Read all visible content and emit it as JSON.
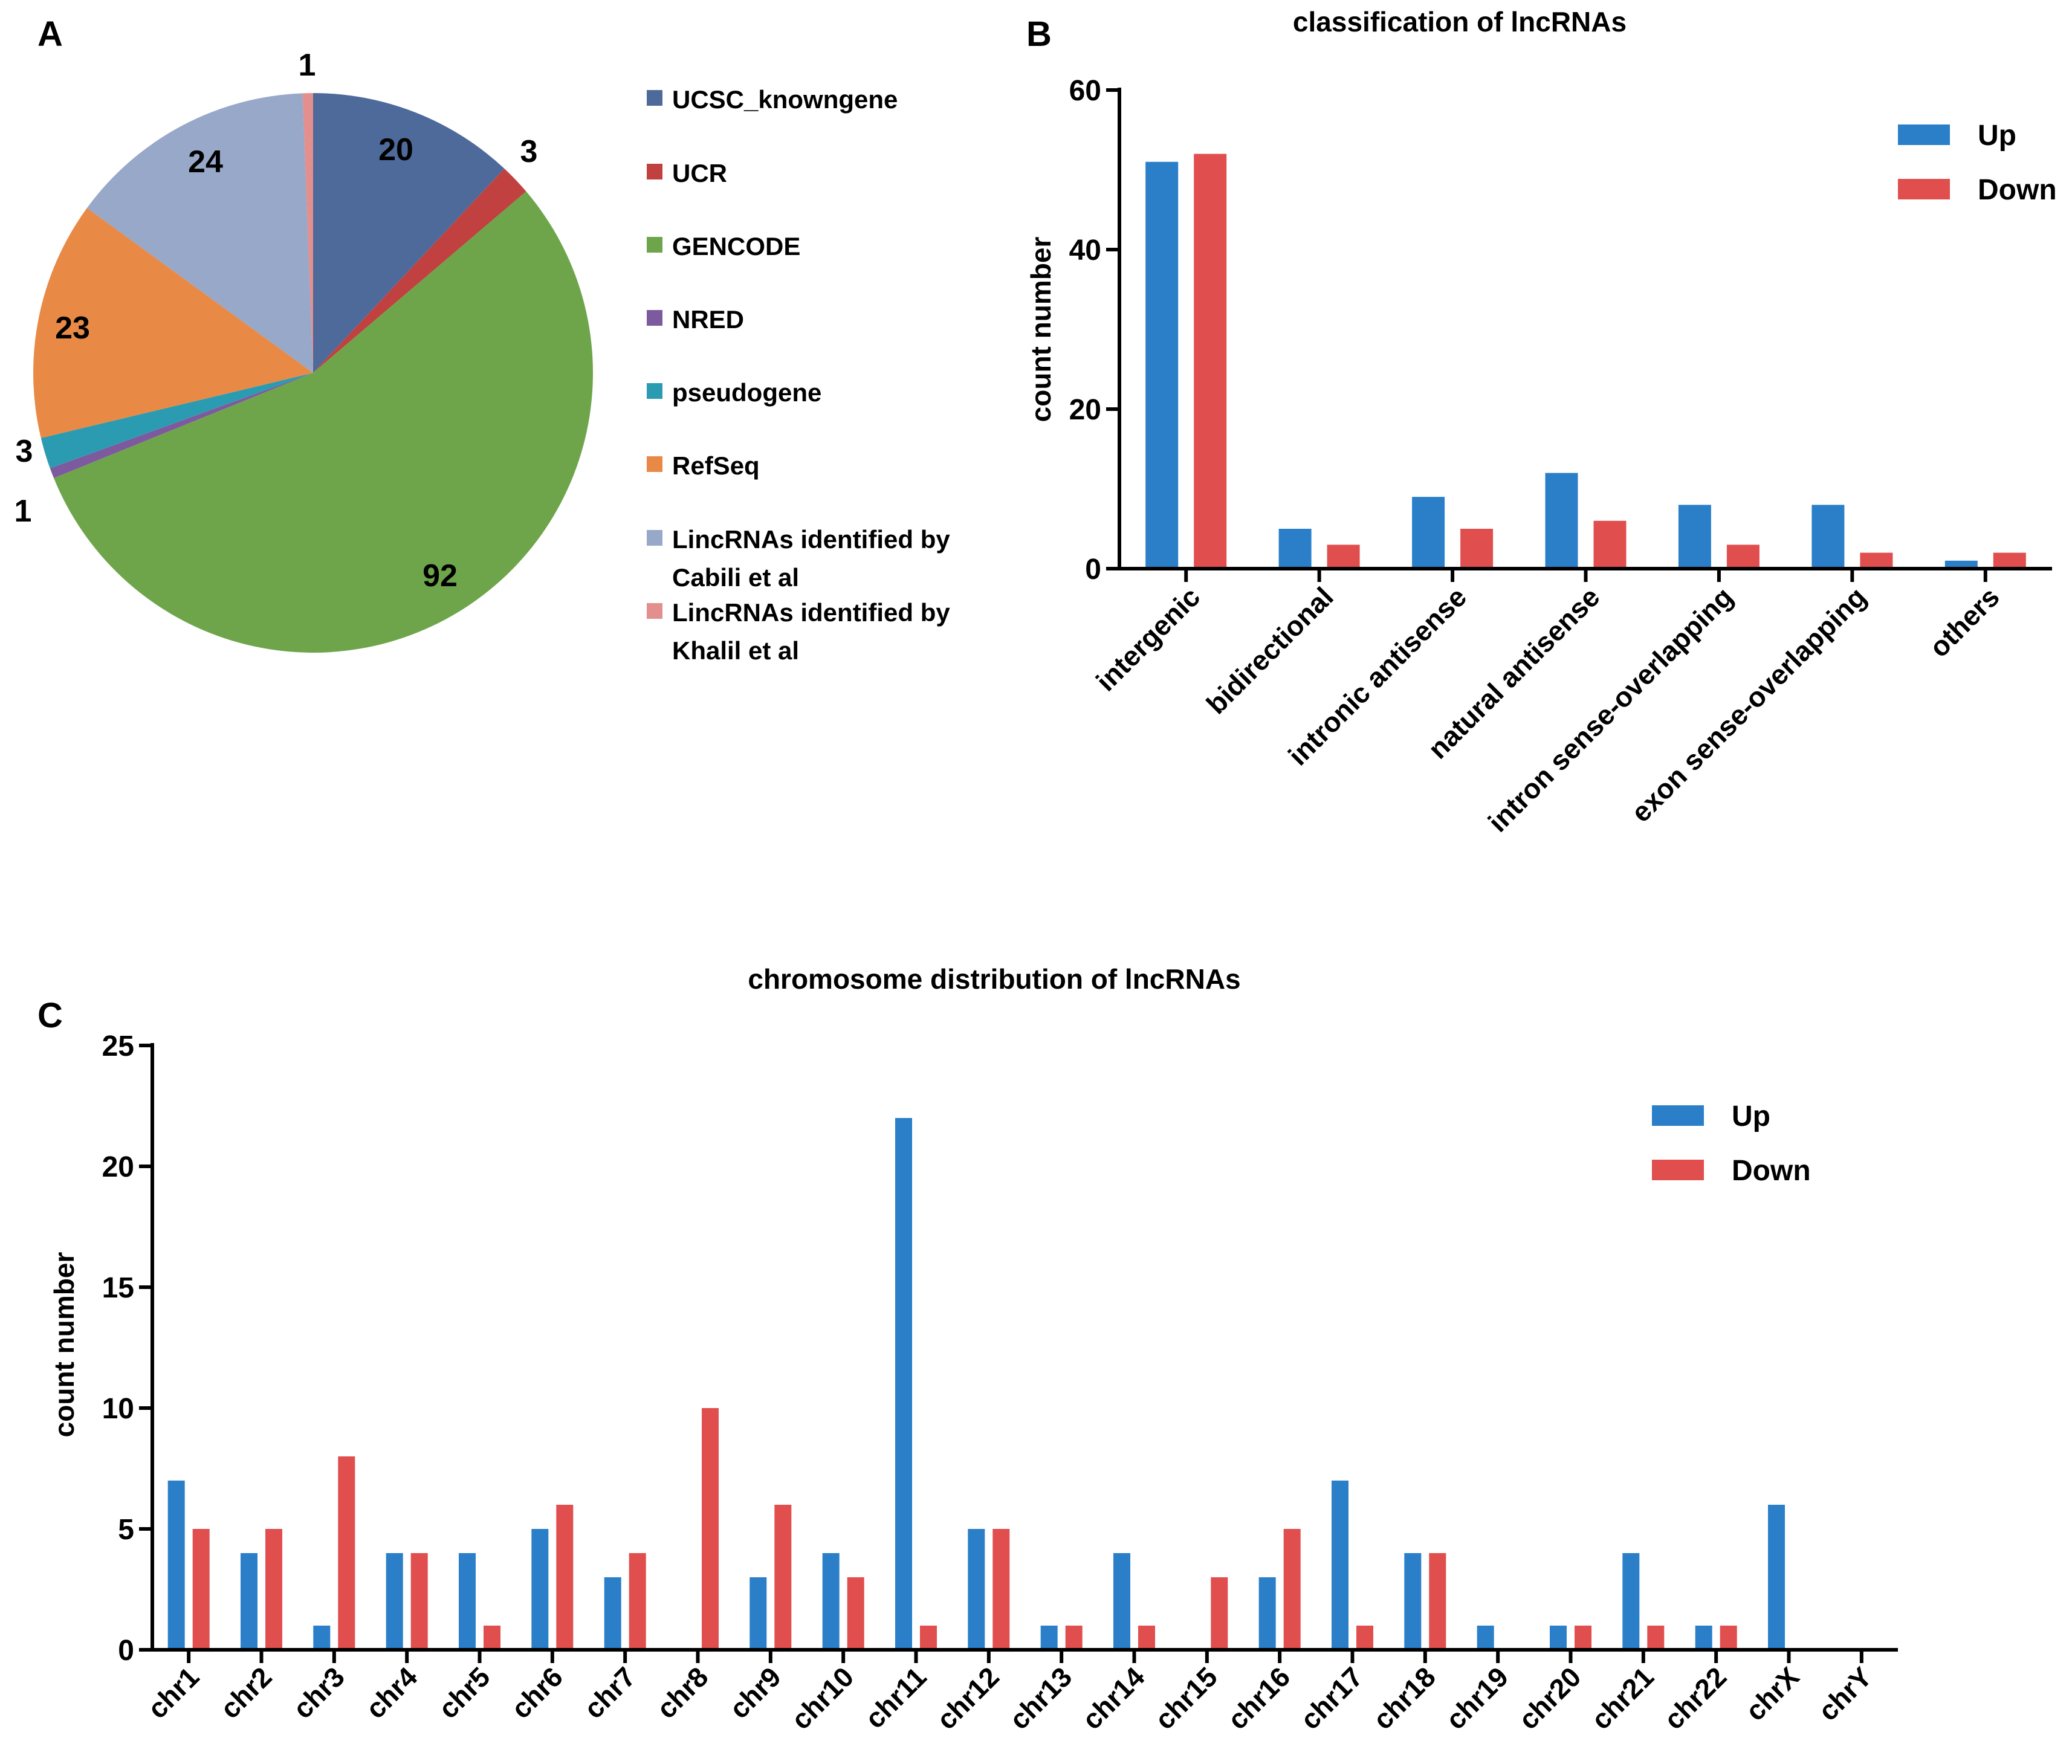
{
  "colors": {
    "up": "#2a7fc8",
    "down": "#e04e4e"
  },
  "panel_letters": {
    "a": "A",
    "b": "B",
    "c": "C"
  },
  "chart_data": [
    {
      "id": "A",
      "type": "pie",
      "title": "",
      "slices": [
        {
          "label": "UCSC_knowngene",
          "value": 20,
          "color": "#4e6a9b"
        },
        {
          "label": "UCR",
          "value": 3,
          "color": "#c0413f"
        },
        {
          "label": "GENCODE",
          "value": 92,
          "color": "#6ea54b"
        },
        {
          "label": "NRED",
          "value": 1,
          "color": "#7d5a9e"
        },
        {
          "label": "pseudogene",
          "value": 3,
          "color": "#2b9bb2"
        },
        {
          "label": "RefSeq",
          "value": 23,
          "color": "#e88a45"
        },
        {
          "label": "LincRNAs identified by Cabili et al",
          "label_lines": [
            "LincRNAs identified by",
            "Cabili et al"
          ],
          "value": 24,
          "color": "#97a8c9"
        },
        {
          "label": "LincRNAs identified by Khalil et al",
          "label_lines": [
            "LincRNAs identified by",
            "Khalil et al"
          ],
          "value": 1,
          "color": "#e28f8e"
        }
      ]
    },
    {
      "id": "B",
      "type": "bar",
      "title": "classification of lncRNAs",
      "ylabel": "count number",
      "xlabel": "",
      "ylim": [
        0,
        60
      ],
      "yticks": [
        0,
        20,
        40,
        60
      ],
      "legend": "top-right",
      "categories": [
        "intergenic",
        "bidirectional",
        "intronic antisense",
        "natural antisense",
        "intron sense-overlapping",
        "exon sense-overlapping",
        "others"
      ],
      "series": [
        {
          "name": "Up",
          "values": [
            51,
            5,
            9,
            12,
            8,
            8,
            1
          ]
        },
        {
          "name": "Down",
          "values": [
            52,
            3,
            5,
            6,
            3,
            2,
            2
          ]
        }
      ]
    },
    {
      "id": "C",
      "type": "bar",
      "title": "chromosome distribution of lncRNAs",
      "ylabel": "count number",
      "xlabel": "",
      "ylim": [
        0,
        25
      ],
      "yticks": [
        0,
        5,
        10,
        15,
        20,
        25
      ],
      "legend": "top-right",
      "categories": [
        "chr1",
        "chr2",
        "chr3",
        "chr4",
        "chr5",
        "chr6",
        "chr7",
        "chr8",
        "chr9",
        "chr10",
        "chr11",
        "chr12",
        "chr13",
        "chr14",
        "chr15",
        "chr16",
        "chr17",
        "chr18",
        "chr19",
        "chr20",
        "chr21",
        "chr22",
        "chrX",
        "chrY"
      ],
      "series": [
        {
          "name": "Up",
          "values": [
            7,
            4,
            1,
            4,
            4,
            5,
            3,
            0,
            3,
            4,
            22,
            5,
            1,
            4,
            0,
            3,
            7,
            4,
            1,
            1,
            4,
            1,
            6,
            0
          ]
        },
        {
          "name": "Down",
          "values": [
            5,
            5,
            8,
            4,
            1,
            6,
            4,
            10,
            6,
            3,
            1,
            5,
            1,
            1,
            3,
            5,
            1,
            4,
            0,
            1,
            1,
            1,
            0,
            0
          ]
        }
      ]
    }
  ]
}
